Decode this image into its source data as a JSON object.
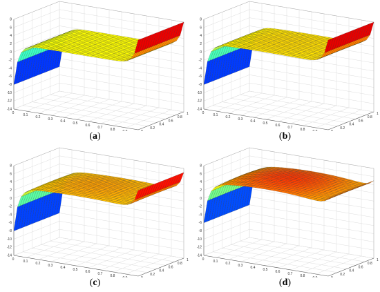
{
  "chart_data": [
    {
      "type": "surface",
      "label": "a",
      "z_ticks": [
        "8",
        "6",
        "4",
        "2",
        "0",
        "-2",
        "-4",
        "-6",
        "-8",
        "-10",
        "-12",
        "-14"
      ],
      "x_ticks": [
        "0",
        "0.1",
        "0.2",
        "0.3",
        "0.4",
        "0.5",
        "0.6",
        "0.7",
        "0.8",
        "0.9",
        "1"
      ],
      "y_ticks": [
        "0",
        "0.2",
        "0.4",
        "0.6",
        "0.8",
        "1"
      ],
      "zlim": [
        -14,
        8
      ],
      "xlim": [
        0,
        1
      ],
      "ylim": [
        0,
        1
      ],
      "plateau_level": 2.0,
      "plateau_curvature": 0.0,
      "left_min": -8,
      "right_max": 8,
      "grid": true
    },
    {
      "type": "surface",
      "label": "b",
      "z_ticks": [
        "8",
        "6",
        "4",
        "2",
        "0",
        "-2",
        "-4",
        "-6",
        "-8",
        "-10",
        "-12",
        "-14"
      ],
      "x_ticks": [
        "0",
        "0.1",
        "0.2",
        "0.3",
        "0.4",
        "0.5",
        "0.6",
        "0.7",
        "0.8",
        "0.9",
        "1"
      ],
      "y_ticks": [
        "0",
        "0.2",
        "0.4",
        "0.6",
        "0.8",
        "1"
      ],
      "zlim": [
        -14,
        8
      ],
      "xlim": [
        0,
        1
      ],
      "ylim": [
        0,
        1
      ],
      "plateau_level": 2.2,
      "plateau_curvature": 0.4,
      "left_min": -8,
      "right_max": 8,
      "grid": true
    },
    {
      "type": "surface",
      "label": "c",
      "z_ticks": [
        "8",
        "6",
        "4",
        "2",
        "0",
        "-2",
        "-4",
        "-6",
        "-8",
        "-10",
        "-12",
        "-14"
      ],
      "x_ticks": [
        "0",
        "0.1",
        "0.2",
        "0.3",
        "0.4",
        "0.5",
        "0.6",
        "0.7",
        "0.8",
        "0.9",
        "1"
      ],
      "y_ticks": [
        "0",
        "0.2",
        "0.4",
        "0.6",
        "0.8",
        "1"
      ],
      "zlim": [
        -14,
        8
      ],
      "xlim": [
        0,
        1
      ],
      "ylim": [
        0,
        1
      ],
      "plateau_level": 2.5,
      "plateau_curvature": 1.0,
      "left_min": -8,
      "right_max": 7,
      "grid": true
    },
    {
      "type": "surface",
      "label": "d",
      "z_ticks": [
        "8",
        "6",
        "4",
        "2",
        "0",
        "-2",
        "-4",
        "-6",
        "-8",
        "-10",
        "-12",
        "-14"
      ],
      "x_ticks": [
        "0",
        "0.1",
        "0.2",
        "0.3",
        "0.4",
        "0.5",
        "0.6",
        "0.7",
        "0.8",
        "0.9",
        "1"
      ],
      "y_ticks": [
        "0",
        "0.2",
        "0.4",
        "0.6",
        "0.8",
        "1"
      ],
      "zlim": [
        -14,
        8
      ],
      "xlim": [
        0,
        1
      ],
      "ylim": [
        0,
        1
      ],
      "plateau_level": 3.5,
      "plateau_curvature": 2.0,
      "left_min": -6,
      "right_max": 5,
      "grid": true
    }
  ],
  "captions": [
    "a",
    "b",
    "c",
    "d"
  ]
}
